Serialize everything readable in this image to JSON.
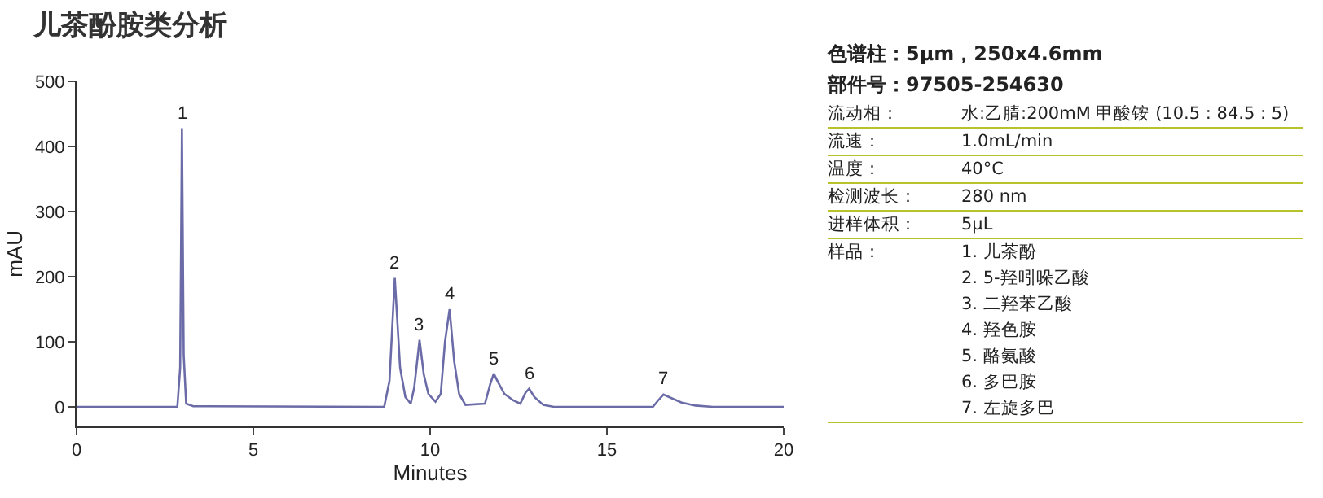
{
  "chart_data": {
    "type": "line",
    "title": "儿茶酚胺类分析",
    "xlabel": "Minutes",
    "ylabel": "mAU",
    "x": [
      0,
      2.85,
      2.93,
      2.98,
      3.03,
      3.1,
      3.3,
      8.7,
      8.85,
      9.0,
      9.15,
      9.3,
      9.45,
      9.55,
      9.7,
      9.82,
      9.95,
      10.15,
      10.3,
      10.42,
      10.55,
      10.68,
      10.82,
      11.0,
      11.55,
      11.7,
      11.8,
      11.92,
      12.1,
      12.35,
      12.55,
      12.7,
      12.8,
      12.95,
      13.2,
      13.5,
      16.3,
      16.45,
      16.6,
      16.8,
      17.1,
      17.5,
      18,
      20
    ],
    "series": [
      {
        "color": "#6b6ba8",
        "values": [
          0,
          0,
          60,
          428,
          80,
          5,
          1,
          0,
          40,
          198,
          60,
          15,
          5,
          30,
          103,
          50,
          20,
          8,
          20,
          100,
          150,
          70,
          20,
          3,
          5,
          35,
          51,
          38,
          20,
          10,
          5,
          22,
          28,
          15,
          3,
          0,
          0,
          10,
          19,
          14,
          7,
          2,
          0,
          0
        ]
      }
    ],
    "xlim": [
      0,
      20
    ],
    "xticks": [
      0,
      5,
      10,
      15,
      20
    ],
    "ylim": [
      -30,
      500
    ],
    "yticks": [
      0,
      100,
      200,
      300,
      400,
      500
    ],
    "grid": false,
    "marker": "none",
    "line_style": "solid",
    "annotations": [
      {
        "text": "1",
        "x": 2.98,
        "y": 428
      },
      {
        "text": "2",
        "x": 9.0,
        "y": 198
      },
      {
        "text": "3",
        "x": 9.7,
        "y": 103
      },
      {
        "text": "4",
        "x": 10.55,
        "y": 150
      },
      {
        "text": "5",
        "x": 11.8,
        "y": 51
      },
      {
        "text": "6",
        "x": 12.8,
        "y": 28
      },
      {
        "text": "7",
        "x": 16.6,
        "y": 19
      },
      "色谱柱：5μm，250x4.6mm",
      "部件号：97505-254630",
      "流动相：",
      "水:乙腈:200mM 甲酸铵 (10.5 : 84.5 : 5)",
      "流速：",
      "1.0mL/min",
      "温度：",
      "40°C",
      "检测波长：",
      "280 nm",
      "进样体积：",
      "5μL",
      "样品：",
      "1. 儿茶酚",
      "2. 5-羟吲哚乙酸",
      "3. 二羟苯乙酸",
      "4. 羟色胺",
      "5. 酪氨酸",
      "6. 多巴胺",
      "7. 左旋多巴"
    ]
  }
}
